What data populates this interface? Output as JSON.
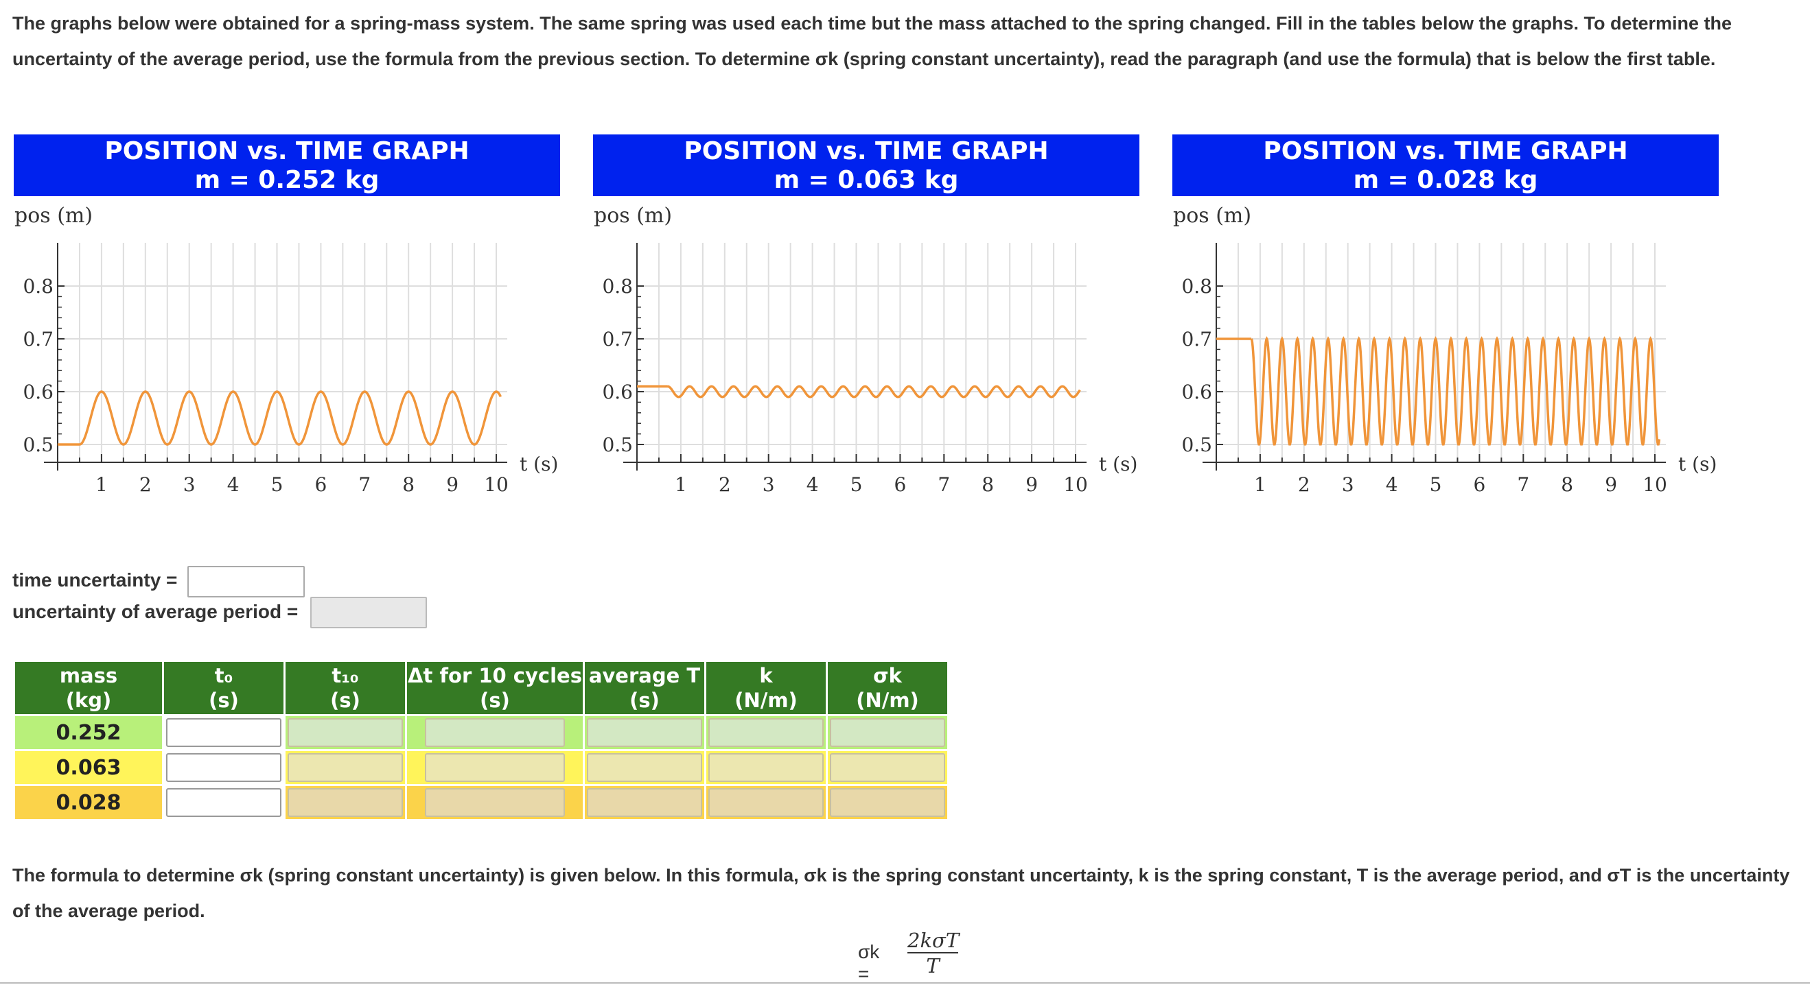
{
  "intro": "The graphs below were obtained for a spring-mass system. The same spring was used each time but the mass attached to the spring changed. Fill in the tables below the graphs. To determine the uncertainty of the average period, use the formula from the previous section. To determine σk (spring constant uncertainty), read the paragraph (and use the formula) that is below the first table.",
  "graphs": [
    {
      "title": "POSITION vs. TIME GRAPH",
      "subtitle": "m = 0.252 kg",
      "ylabel": "pos (m)",
      "xlabel": "t (s)",
      "yticks": [
        "0.8",
        "0.7",
        "0.6",
        "0.5"
      ],
      "xticks": [
        "1",
        "2",
        "3",
        "4",
        "5",
        "6",
        "7",
        "8",
        "9",
        "10"
      ],
      "color": "#f0953a",
      "equilibrium": 0.55,
      "amplitude": 0.05,
      "period": 1.0,
      "start": 0.5,
      "start_value": 0.5
    },
    {
      "title": "POSITION vs. TIME GRAPH",
      "subtitle": "m = 0.063 kg",
      "ylabel": "pos (m)",
      "xlabel": "t (s)",
      "yticks": [
        "0.8",
        "0.7",
        "0.6",
        "0.5"
      ],
      "xticks": [
        "1",
        "2",
        "3",
        "4",
        "5",
        "6",
        "7",
        "8",
        "9",
        "10"
      ],
      "color": "#f0953a",
      "equilibrium": 0.6,
      "amplitude": 0.01,
      "period": 0.5,
      "start": 0.7,
      "start_value": 0.61
    },
    {
      "title": "POSITION vs. TIME GRAPH",
      "subtitle": "m = 0.028 kg",
      "ylabel": "pos (m)",
      "xlabel": "t (s)",
      "yticks": [
        "0.8",
        "0.7",
        "0.6",
        "0.5"
      ],
      "xticks": [
        "1",
        "2",
        "3",
        "4",
        "5",
        "6",
        "7",
        "8",
        "9",
        "10"
      ],
      "color": "#f0953a",
      "equilibrium": 0.6,
      "amplitude": 0.1,
      "period": 0.35,
      "start": 0.8,
      "start_value": 0.7
    }
  ],
  "uncertainty": {
    "time_label": "time uncertainty =",
    "period_label": "uncertainty of average period ="
  },
  "table": {
    "headers": [
      {
        "line1": "mass",
        "line2": "(kg)"
      },
      {
        "line1": "t₀",
        "line2": "(s)"
      },
      {
        "line1": "t₁₀",
        "line2": "(s)"
      },
      {
        "line1": "Δt for 10 cycles",
        "line2": "(s)"
      },
      {
        "line1": "average T",
        "line2": "(s)"
      },
      {
        "line1": "k",
        "line2": "(N/m)"
      },
      {
        "line1": "σk",
        "line2": "(N/m)"
      }
    ],
    "rows": [
      {
        "mass": "0.252",
        "rowcolor": "#b8f07a",
        "boxcolor": "#d3e8c3"
      },
      {
        "mass": "0.063",
        "rowcolor": "#fff45a",
        "boxcolor": "#ece7b0"
      },
      {
        "mass": "0.028",
        "rowcolor": "#fbd34a",
        "boxcolor": "#e8d8a9"
      }
    ]
  },
  "formula_text": "The formula to determine σk (spring constant uncertainty) is given below. In this formula, σk is the spring constant uncertainty, k is the spring constant, T is the average period, and σT is the uncertainty of the average period.",
  "formula": {
    "lhs": "σk =",
    "numerator": "2kσT",
    "denominator": "T"
  }
}
